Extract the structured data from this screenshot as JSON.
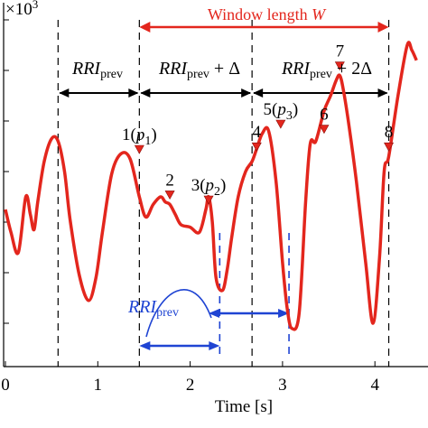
{
  "chart_data": {
    "type": "line",
    "xlabel": "Time [s]",
    "y_exponent": "×10",
    "y_exponent_power": "3",
    "xlim": [
      0,
      4.45
    ],
    "ylim": [
      0,
      10
    ],
    "xticks": [
      {
        "value": 0,
        "label": "0"
      },
      {
        "value": 1,
        "label": "1"
      },
      {
        "value": 2,
        "label": "2"
      },
      {
        "value": 3,
        "label": "3"
      },
      {
        "value": 4,
        "label": "4"
      }
    ],
    "yticks": [
      1.0,
      2.0,
      3.0,
      4.0,
      5.0,
      6.0,
      7.0,
      8.0,
      9.0
    ],
    "series": [
      {
        "color": "#e3261d",
        "x": [
          0.0,
          0.06,
          0.14,
          0.22,
          0.27,
          0.31,
          0.35,
          0.42,
          0.5,
          0.57,
          0.64,
          0.7,
          0.8,
          0.9,
          0.98,
          1.05,
          1.15,
          1.25,
          1.35,
          1.45,
          1.52,
          1.6,
          1.68,
          1.73,
          1.78,
          1.84,
          1.9,
          2.0,
          2.1,
          2.17,
          2.2,
          2.24,
          2.28,
          2.35,
          2.4,
          2.45,
          2.52,
          2.6,
          2.67,
          2.72,
          2.78,
          2.85,
          2.93,
          3.0,
          3.05,
          3.1,
          3.18,
          3.25,
          3.3,
          3.36,
          3.45,
          3.52,
          3.58,
          3.62,
          3.66,
          3.72,
          3.8,
          3.9,
          3.98,
          4.05,
          4.1,
          4.15,
          4.25,
          4.35,
          4.4,
          4.45
        ],
        "values": [
          4.25,
          3.8,
          3.4,
          4.5,
          4.15,
          3.85,
          4.4,
          5.2,
          5.65,
          5.6,
          5.0,
          4.05,
          2.95,
          2.45,
          2.9,
          3.8,
          4.95,
          5.35,
          5.25,
          4.5,
          4.1,
          4.35,
          4.5,
          4.4,
          4.35,
          4.15,
          3.95,
          3.9,
          3.8,
          4.25,
          4.5,
          4.0,
          2.9,
          2.65,
          3.05,
          3.7,
          4.5,
          5.0,
          5.2,
          5.45,
          5.75,
          5.8,
          4.8,
          3.2,
          2.3,
          1.9,
          2.2,
          4.4,
          5.55,
          5.6,
          6.2,
          6.5,
          6.8,
          6.9,
          6.6,
          5.9,
          4.8,
          3.2,
          2.0,
          3.3,
          5.0,
          5.3,
          6.5,
          7.5,
          7.4,
          7.2
        ]
      }
    ],
    "peaks": [
      {
        "label": "1",
        "param": "p",
        "param_index": "1",
        "x": 1.45,
        "y": 5.25
      },
      {
        "label": "2",
        "param": "",
        "param_index": "",
        "x": 1.78,
        "y": 4.35
      },
      {
        "label": "3",
        "param": "p",
        "param_index": "2",
        "x": 2.2,
        "y": 4.25
      },
      {
        "label": "4",
        "param": "",
        "param_index": "",
        "x": 2.72,
        "y": 5.3
      },
      {
        "label": "5",
        "param": "p",
        "param_index": "3",
        "x": 2.98,
        "y": 5.75
      },
      {
        "label": "6",
        "param": "",
        "param_index": "",
        "x": 3.45,
        "y": 5.65
      },
      {
        "label": "7",
        "param": "",
        "param_index": "",
        "x": 3.62,
        "y": 6.9
      },
      {
        "label": "8",
        "param": "",
        "param_index": "",
        "x": 4.15,
        "y": 5.3
      }
    ],
    "dashed_black_x": [
      0.57,
      1.45,
      2.67,
      4.15
    ],
    "dashed_blue_x": [
      2.32,
      3.07
    ]
  },
  "annotations": {
    "window_label": "Window length ",
    "window_symbol": "W",
    "rri": "RRI",
    "prev": "prev",
    "plus_delta": " + Δ",
    "plus_two_delta": " + 2Δ"
  },
  "colors": {
    "signal": "#e3261d",
    "annotation_blue": "#1f44d3",
    "window": "#e3261d"
  }
}
